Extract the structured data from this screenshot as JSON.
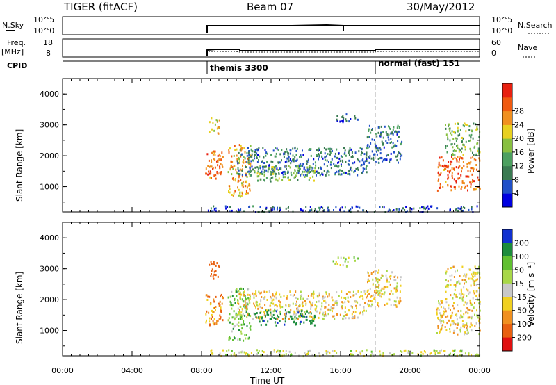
{
  "header": {
    "title": "TIGER (fitACF)",
    "beam": "Beam 07",
    "date": "30/May/2012"
  },
  "top_panels": {
    "nsky_label": "N.Sky",
    "nsky_tick_hi": "10^5",
    "nsky_tick_lo": "10^0",
    "nsearch_label": "N.Search",
    "nsearch_tick_hi": "10^5",
    "nsearch_tick_lo": "10^0",
    "freq_label": "Freq.",
    "freq_unit": "[MHz]",
    "freq_tick_hi": "18",
    "freq_tick_lo": "8",
    "nave_label": "Nave",
    "nave_tick_hi": "60",
    "nave_tick_lo": "0",
    "cpid_label": "CPID",
    "cpid_mode_1": "themis 3300",
    "cpid_mode_2": "normal (fast) 151"
  },
  "axes": {
    "xlabel": "Time UT",
    "ylabel": "Slant Range [km]",
    "xticks": [
      "00:00",
      "04:00",
      "08:00",
      "12:00",
      "16:00",
      "20:00",
      "00:00"
    ],
    "yticks": [
      "1000",
      "2000",
      "3000",
      "4000"
    ]
  },
  "colorbars": {
    "power": {
      "label": "Power [dB]",
      "ticks": [
        "4",
        "8",
        "12",
        "16",
        "20",
        "24",
        "28"
      ],
      "colors": [
        "#0000e0",
        "#2050c8",
        "#3a7a52",
        "#4ca060",
        "#88c040",
        "#e8d020",
        "#f09020",
        "#f05a10",
        "#e82010"
      ]
    },
    "velocity": {
      "label": "Velocity [m s⁻¹]",
      "ticks": [
        "200",
        "100",
        "50",
        "15",
        "-15",
        "-50",
        "-100",
        "-200"
      ],
      "colors": [
        "#1030d0",
        "#1c8c3c",
        "#60c030",
        "#a8d848",
        "#c8c8c8",
        "#f0d020",
        "#f09020",
        "#e86010",
        "#e01010"
      ]
    }
  },
  "chart_data": {
    "type": "heatmap",
    "x_range_hours": [
      0,
      24
    ],
    "y_range_km": [
      180,
      4500
    ],
    "radar_on_hours": 8.2,
    "mode_change_hours": 18.0,
    "regions": [
      {
        "t0": 8.2,
        "t1": 9.2,
        "r0": 1200,
        "r1": 2200,
        "power": 26,
        "velocity": -80
      },
      {
        "t0": 8.4,
        "t1": 9.0,
        "r0": 2700,
        "r1": 3300,
        "power": 20,
        "velocity": -150
      },
      {
        "t0": 9.5,
        "t1": 10.8,
        "r0": 700,
        "r1": 2400,
        "power": 22,
        "velocity": 60
      },
      {
        "t0": 10.0,
        "t1": 17.5,
        "r0": 1400,
        "r1": 2300,
        "power": 8,
        "velocity": -20
      },
      {
        "t0": 11.0,
        "t1": 14.5,
        "r0": 1200,
        "r1": 1700,
        "power": 14,
        "velocity": 150
      },
      {
        "t0": 15.5,
        "t1": 17.0,
        "r0": 3100,
        "r1": 3400,
        "power": 6,
        "velocity": 20
      },
      {
        "t0": 17.5,
        "t1": 19.5,
        "r0": 1800,
        "r1": 3000,
        "power": 8,
        "velocity": -20
      },
      {
        "t0": 21.5,
        "t1": 24.0,
        "r0": 900,
        "r1": 2000,
        "power": 26,
        "velocity": -30
      },
      {
        "t0": 22.0,
        "t1": 24.0,
        "r0": 2000,
        "r1": 3100,
        "power": 14,
        "velocity": -15
      },
      {
        "t0": 8.2,
        "t1": 24.0,
        "r0": 200,
        "r1": 400,
        "power": 6,
        "velocity": 10
      }
    ]
  }
}
